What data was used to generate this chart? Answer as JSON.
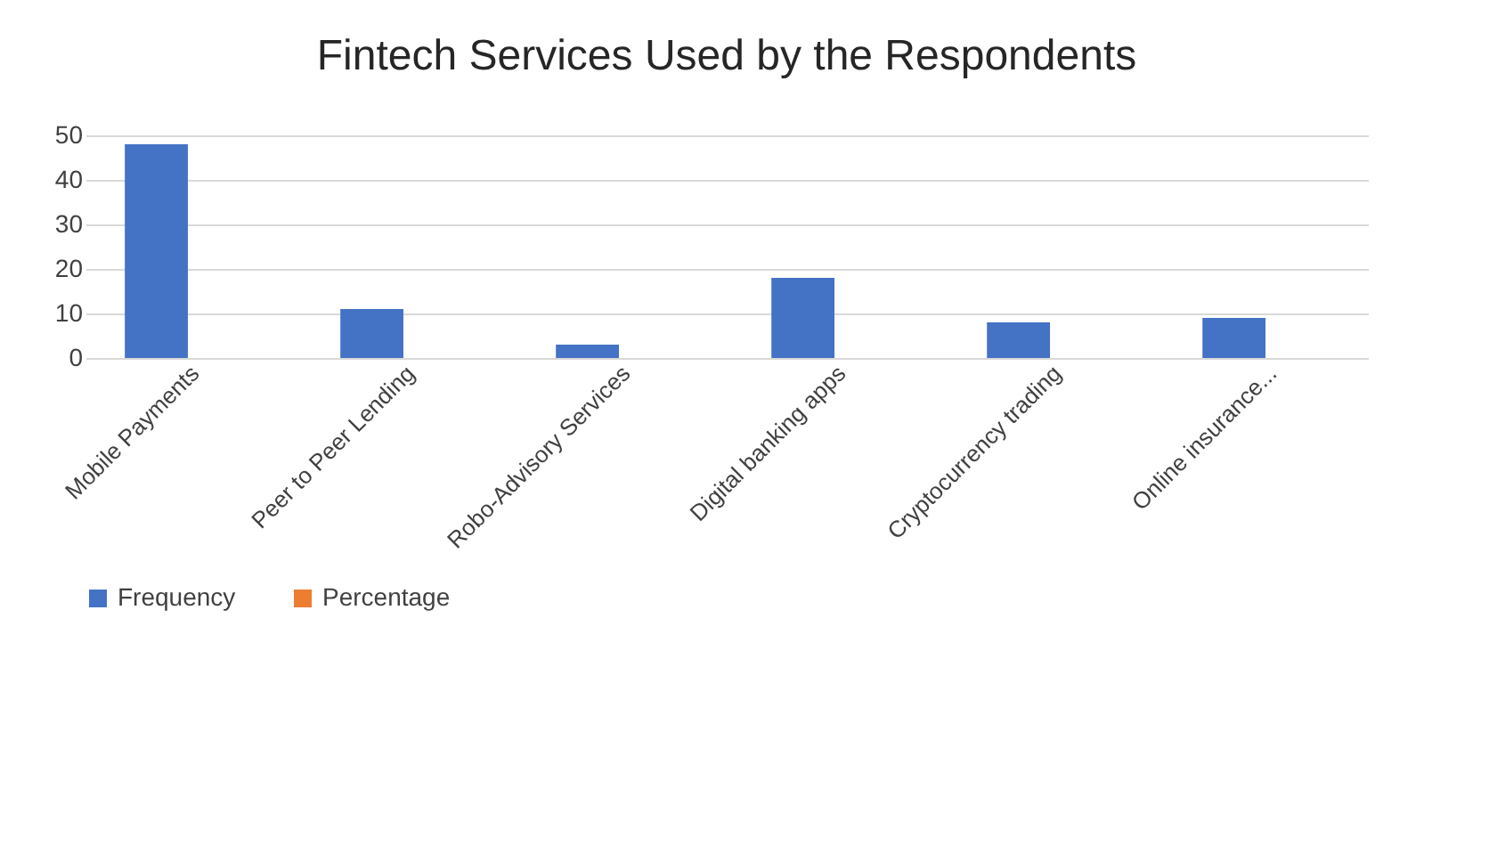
{
  "chart_data": {
    "type": "bar",
    "title": "Fintech Services Used by the Respondents",
    "categories": [
      "Mobile Payments",
      "Peer to Peer Lending",
      "Robo-Advisory Services",
      "Digital banking apps",
      "Cryptocurrency trading",
      "Online insurance..."
    ],
    "series": [
      {
        "name": "Frequency",
        "color": "#4472c4",
        "values": [
          48,
          11,
          3,
          18,
          8,
          9
        ]
      },
      {
        "name": "Percentage",
        "color": "#ed7d31",
        "values": [
          0,
          0,
          0,
          0,
          0,
          0
        ]
      }
    ],
    "ylim": [
      0,
      50
    ],
    "yticks": [
      0,
      10,
      20,
      30,
      40,
      50
    ],
    "grid": "y",
    "legend": "bottom"
  }
}
